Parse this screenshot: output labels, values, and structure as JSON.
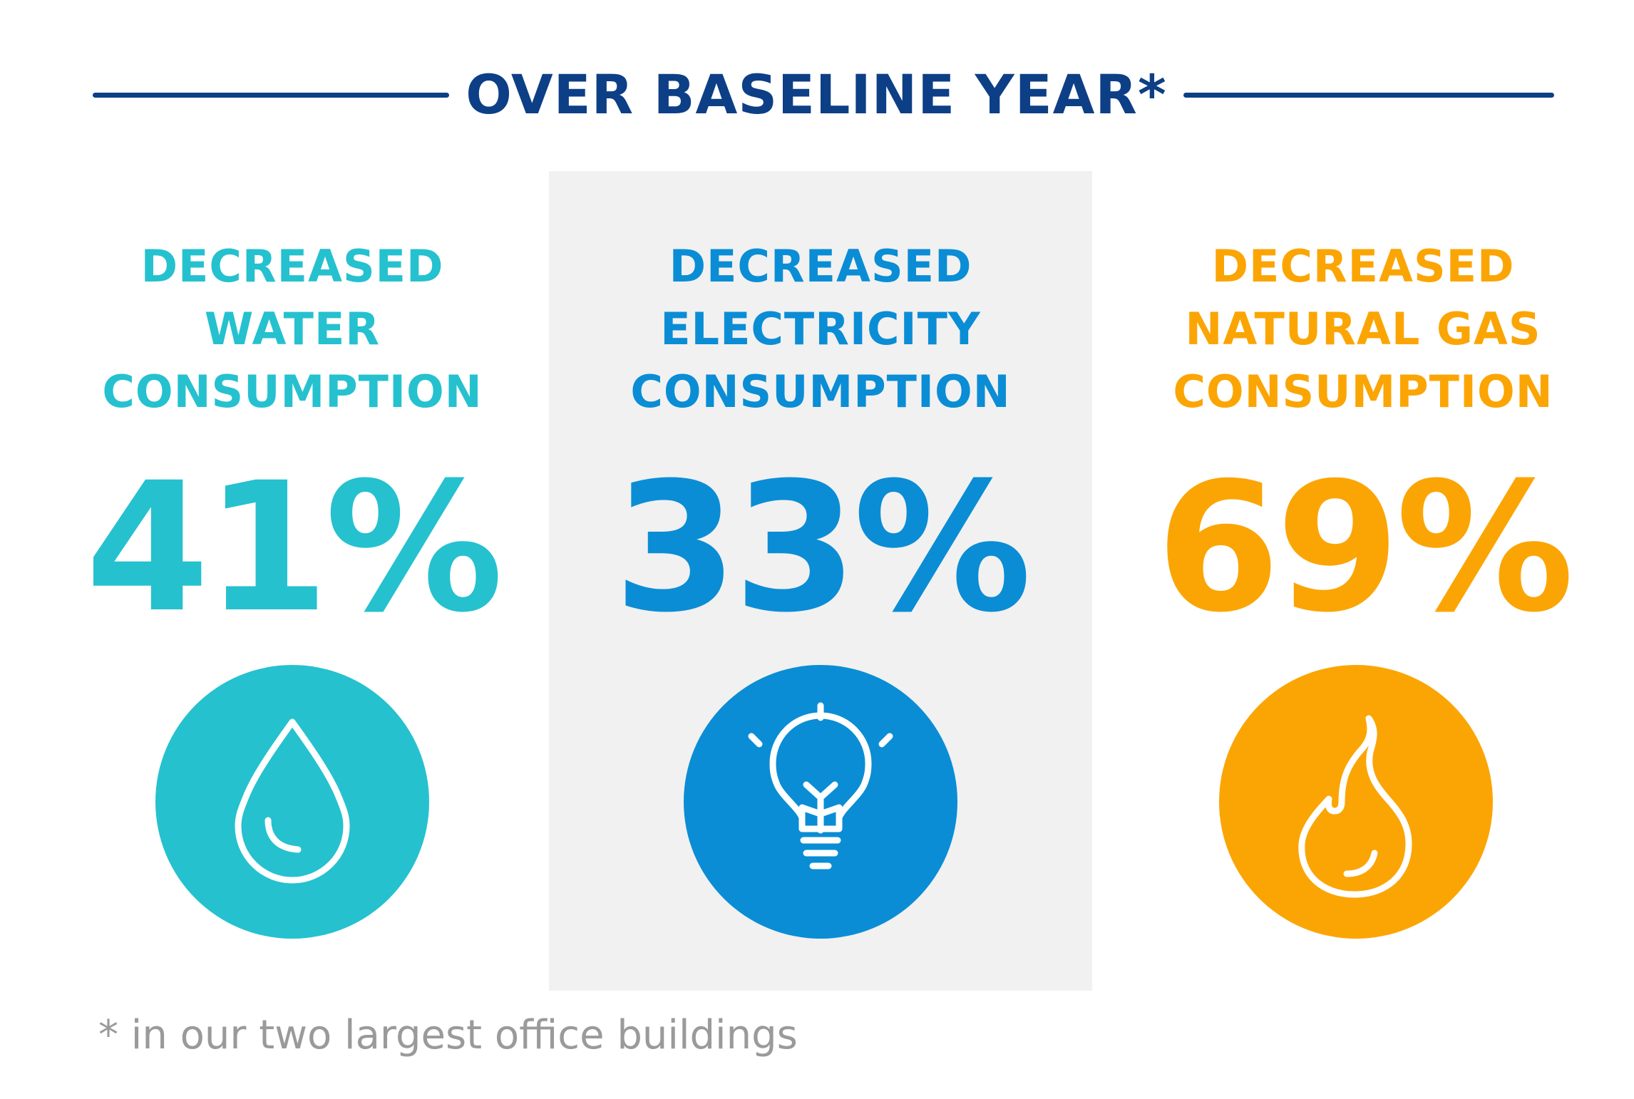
{
  "header": {
    "title": "OVER BASELINE YEAR*",
    "accent_color": "#0d3f86"
  },
  "metrics": [
    {
      "label_lines": [
        "DECREASED",
        "WATER",
        "CONSUMPTION"
      ],
      "value": "41%",
      "color": "#25c1cf",
      "icon": "water-drop-icon"
    },
    {
      "label_lines": [
        "DECREASED",
        "ELECTRICITY",
        "CONSUMPTION"
      ],
      "value": "33%",
      "color": "#0a8dd5",
      "icon": "light-bulb-icon"
    },
    {
      "label_lines": [
        "DECREASED",
        "NATURAL GAS",
        "CONSUMPTION"
      ],
      "value": "69%",
      "color": "#fba504",
      "icon": "flame-icon"
    }
  ],
  "highlight_panel_color": "#f1f1f1",
  "footnote": "* in our two largest office buildings"
}
